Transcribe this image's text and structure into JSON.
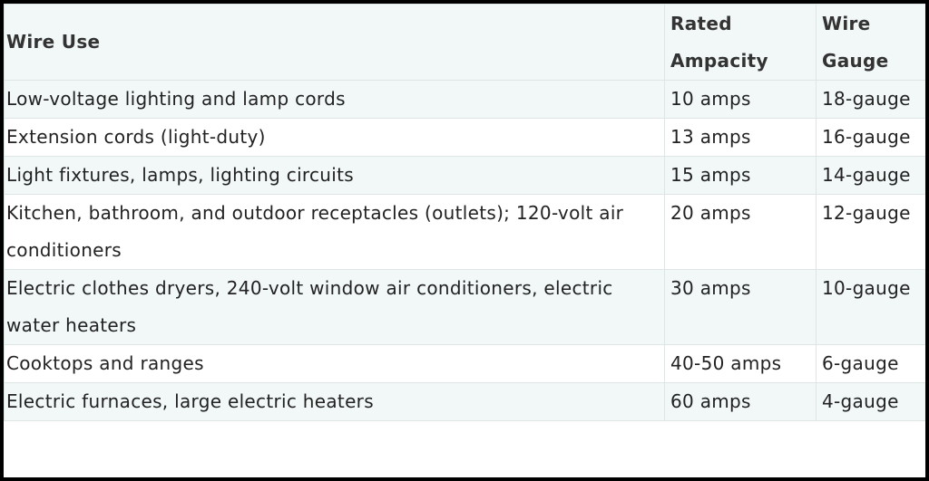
{
  "table": {
    "header": [
      "Wire Use",
      "Rated Ampacity",
      "Wire Gauge"
    ],
    "rows": [
      [
        "Low-voltage lighting and lamp cords",
        "10 amps",
        "18-gauge"
      ],
      [
        "Extension cords (light-duty)",
        "13 amps",
        "16-gauge"
      ],
      [
        "Light fixtures, lamps, lighting circuits",
        "15 amps",
        "14-gauge"
      ],
      [
        "Kitchen, bathroom, and outdoor receptacles (outlets); 120-volt air conditioners",
        "20 amps",
        "12-gauge"
      ],
      [
        "Electric clothes dryers, 240-volt window air conditioners, electric water heaters",
        "30 amps",
        "10-gauge"
      ],
      [
        "Cooktops and ranges",
        "40-50 amps",
        "6-gauge"
      ],
      [
        "Electric furnaces, large electric heaters",
        "60 amps",
        "4-gauge"
      ]
    ]
  }
}
